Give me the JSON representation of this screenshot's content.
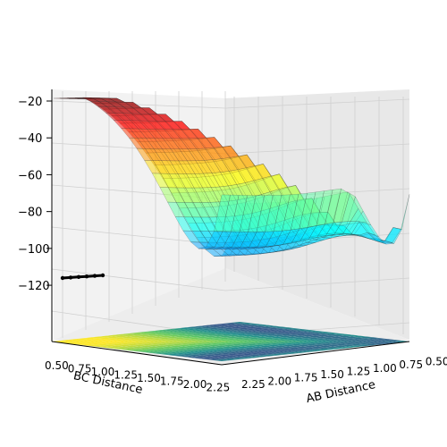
{
  "chart_data": {
    "type": "surface",
    "projection": "3d",
    "colormap_surface": "jet",
    "colormap_contour_floor": "viridis",
    "surface_alpha": 0.5,
    "xlabel": "AB Distance",
    "ylabel": "BC Distance",
    "zlabel": "",
    "x_ticks": [
      "0.50",
      "0.75",
      "1.00",
      "1.25",
      "1.50",
      "1.75",
      "2.00",
      "2.25"
    ],
    "y_ticks": [
      "0.50",
      "0.75",
      "1.00",
      "1.25",
      "1.50",
      "1.75",
      "2.00",
      "2.25"
    ],
    "z_ticks": [
      "-20",
      "-40",
      "-60",
      "-80",
      "-100",
      "-120"
    ],
    "xlim": [
      0.5,
      2.5
    ],
    "ylim": [
      0.5,
      2.5
    ],
    "zlim": [
      -135,
      -20
    ],
    "grid": true,
    "trajectory": {
      "color": "#000000",
      "ab_distance": [
        2.5,
        2.48,
        2.46,
        2.44,
        2.42,
        2.4
      ],
      "bc_distance": [
        0.74,
        0.74,
        0.74,
        0.74,
        0.74,
        0.74
      ],
      "energy": [
        -104,
        -104,
        -104,
        -104,
        -104,
        -104
      ]
    },
    "energy_levels": [
      -20,
      -30,
      -40,
      -50,
      -60,
      -70,
      -80,
      -90,
      -100,
      -110,
      -120,
      -130
    ]
  }
}
